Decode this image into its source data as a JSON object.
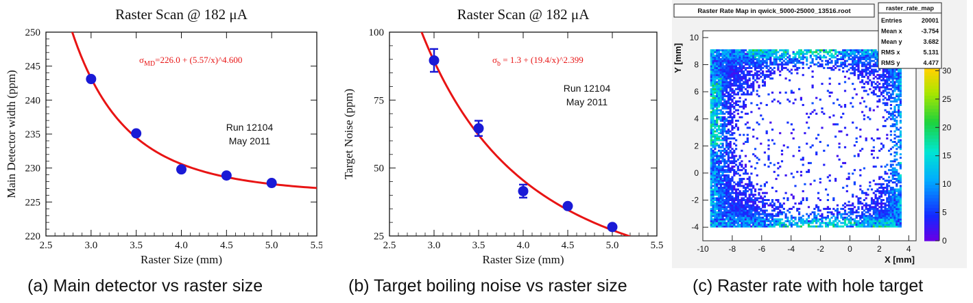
{
  "chart_data": [
    {
      "type": "scatter",
      "title": "Raster Scan @ 182 μA",
      "xlabel": "Raster Size (mm)",
      "ylabel": "Main Detector width (ppm)",
      "xlim": [
        2.5,
        5.5
      ],
      "ylim": [
        220,
        250
      ],
      "x_ticks": [
        "2.5",
        "3.0",
        "3.5",
        "4.0",
        "4.5",
        "5.0",
        "5.5"
      ],
      "y_ticks": [
        "220",
        "225",
        "230",
        "235",
        "240",
        "245",
        "250"
      ],
      "series": [
        {
          "x": [
            3.0,
            3.5,
            4.0,
            4.5,
            5.0
          ],
          "y": [
            243.1,
            235.1,
            229.8,
            228.9,
            227.8
          ],
          "err": [
            0.4,
            0.4,
            0.4,
            0.4,
            0.4
          ]
        }
      ],
      "fit": {
        "c": 226.0,
        "a": 5.57,
        "p": 4.6,
        "xrange": [
          2.75,
          5.5
        ]
      },
      "fit_label_sym": "σ",
      "fit_label_sub": "MD",
      "fit_label_rest": "=226.0 + (5.57/x)^4.600",
      "annotation_line1": "Run 12104",
      "annotation_line2": "May 2011",
      "grid": false
    },
    {
      "type": "scatter",
      "title": "Raster Scan @ 182 μA",
      "xlabel": "Raster Size (mm)",
      "ylabel": "Target Noise (ppm)",
      "xlim": [
        2.5,
        5.5
      ],
      "ylim": [
        25,
        100
      ],
      "x_ticks": [
        "2.5",
        "3.0",
        "3.5",
        "4.0",
        "4.5",
        "5.0",
        "5.5"
      ],
      "y_ticks": [
        "25",
        "50",
        "75",
        "100"
      ],
      "series": [
        {
          "x": [
            3.0,
            3.5,
            4.0,
            4.5,
            5.0
          ],
          "y": [
            89.6,
            64.6,
            41.5,
            36.0,
            28.3
          ],
          "err": [
            4.2,
            2.8,
            2.4,
            1.6,
            1.4
          ]
        }
      ],
      "fit": {
        "c": 1.3,
        "a": 19.4,
        "p": 2.399,
        "xrange": [
          2.85,
          5.2
        ]
      },
      "fit_label_sym": "σ",
      "fit_label_sub": "b",
      "fit_label_rest": " = 1.3 + (19.4/x)^2.399",
      "annotation_line1": "Run 12104",
      "annotation_line2": "May 2011",
      "grid": false
    },
    {
      "type": "heatmap",
      "title": "Raster Rate Map in qwick_5000-25000_13516.root",
      "xlabel": "X [mm]",
      "ylabel": "Y [mm]",
      "xlim": [
        -10,
        4.5
      ],
      "ylim": [
        -5,
        10.5
      ],
      "x_ticks": [
        "-10",
        "-8",
        "-6",
        "-4",
        "-2",
        "0",
        "2",
        "4"
      ],
      "y_ticks": [
        "-4",
        "-2",
        "0",
        "2",
        "4",
        "6",
        "8",
        "10"
      ],
      "z_ticks": [
        "0",
        "5",
        "10",
        "15",
        "20",
        "25",
        "30"
      ],
      "zlim": [
        0,
        35
      ],
      "data_region": {
        "x": [
          -9.5,
          3.5
        ],
        "y": [
          -4,
          9
        ]
      },
      "hole": {
        "center": [
          -2.5,
          2.5
        ],
        "radius": 5.2
      },
      "stats": {
        "title": "raster_rate_map",
        "rows": [
          [
            "Entries",
            "20001"
          ],
          [
            "Mean x",
            "-3.754"
          ],
          [
            "Mean y",
            "3.682"
          ],
          [
            "RMS x",
            "5.131"
          ],
          [
            "RMS y",
            "4.477"
          ]
        ]
      }
    }
  ],
  "captions": {
    "a": "(a) Main detector vs raster size",
    "b": "(b) Target boiling noise vs raster size",
    "c": "(c) Raster rate with hole target"
  },
  "colors": {
    "points": "#1a1ad6",
    "fit": "#e81414",
    "axes": "#111111"
  }
}
